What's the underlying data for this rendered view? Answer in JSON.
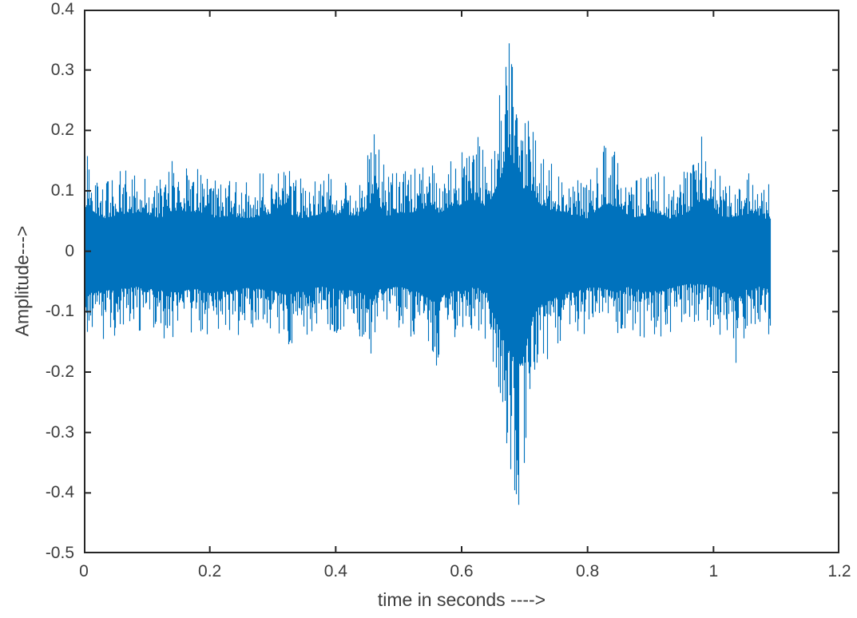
{
  "figure": {
    "background": "#ffffff",
    "axis_color": "#262626",
    "label_color": "#3d3d3d"
  },
  "chart_data": {
    "type": "line",
    "subtype": "audio-waveform",
    "title": "",
    "xlabel": "time in seconds ---->",
    "ylabel": "Amplitude--->",
    "xlim": [
      0,
      1.2
    ],
    "ylim": [
      -0.5,
      0.4
    ],
    "xticks": [
      0,
      0.2,
      0.4,
      0.6,
      0.8,
      1,
      1.2
    ],
    "xtick_labels": [
      "0",
      "0.2",
      "0.4",
      "0.6",
      "0.8",
      "1",
      "1.2"
    ],
    "yticks": [
      0.4,
      0.3,
      0.2,
      0.1,
      0,
      -0.1,
      -0.2,
      -0.3,
      -0.4,
      -0.5
    ],
    "ytick_labels": [
      "0.4",
      "0.3",
      "0.2",
      "0.1",
      "0",
      "-0.1",
      "-0.2",
      "-0.3",
      "-0.4",
      "-0.5"
    ],
    "grid": false,
    "legend": null,
    "box": true,
    "tick_direction": "in",
    "line_color": "#0072BD",
    "signal": {
      "description": "dense noisy speech/audio waveform centered on 0",
      "t_start": 0,
      "t_end": 1.09,
      "peak_positive": {
        "t": 0.675,
        "value": 0.345
      },
      "peak_negative": {
        "t": 0.69,
        "value": -0.42
      },
      "secondary_burst": {
        "t": 0.98,
        "value": 0.19
      },
      "envelope_top": [
        [
          0,
          0.16
        ],
        [
          0.01,
          0.155
        ],
        [
          0.03,
          0.12
        ],
        [
          0.07,
          0.14
        ],
        [
          0.09,
          0.14
        ],
        [
          0.12,
          0.12
        ],
        [
          0.14,
          0.15
        ],
        [
          0.175,
          0.145
        ],
        [
          0.2,
          0.12
        ],
        [
          0.23,
          0.13
        ],
        [
          0.26,
          0.12
        ],
        [
          0.3,
          0.14
        ],
        [
          0.32,
          0.14
        ],
        [
          0.35,
          0.12
        ],
        [
          0.38,
          0.14
        ],
        [
          0.41,
          0.13
        ],
        [
          0.44,
          0.13
        ],
        [
          0.46,
          0.195
        ],
        [
          0.48,
          0.13
        ],
        [
          0.51,
          0.14
        ],
        [
          0.54,
          0.15
        ],
        [
          0.57,
          0.14
        ],
        [
          0.6,
          0.17
        ],
        [
          0.625,
          0.19
        ],
        [
          0.64,
          0.15
        ],
        [
          0.655,
          0.24
        ],
        [
          0.668,
          0.31
        ],
        [
          0.675,
          0.345
        ],
        [
          0.682,
          0.3
        ],
        [
          0.69,
          0.27
        ],
        [
          0.7,
          0.22
        ],
        [
          0.712,
          0.21
        ],
        [
          0.725,
          0.17
        ],
        [
          0.74,
          0.15
        ],
        [
          0.76,
          0.14
        ],
        [
          0.78,
          0.13
        ],
        [
          0.8,
          0.12
        ],
        [
          0.826,
          0.175
        ],
        [
          0.85,
          0.16
        ],
        [
          0.87,
          0.12
        ],
        [
          0.89,
          0.13
        ],
        [
          0.91,
          0.14
        ],
        [
          0.93,
          0.12
        ],
        [
          0.95,
          0.13
        ],
        [
          0.965,
          0.15
        ],
        [
          0.98,
          0.19
        ],
        [
          0.992,
          0.185
        ],
        [
          1.005,
          0.14
        ],
        [
          1.02,
          0.12
        ],
        [
          1.04,
          0.13
        ],
        [
          1.06,
          0.14
        ],
        [
          1.075,
          0.12
        ],
        [
          1.09,
          0.12
        ]
      ],
      "envelope_bottom": [
        [
          0,
          0.16
        ],
        [
          0.02,
          0.148
        ],
        [
          0.05,
          0.14
        ],
        [
          0.08,
          0.13
        ],
        [
          0.11,
          0.14
        ],
        [
          0.14,
          0.15
        ],
        [
          0.17,
          0.14
        ],
        [
          0.2,
          0.14
        ],
        [
          0.23,
          0.15
        ],
        [
          0.26,
          0.13
        ],
        [
          0.29,
          0.14
        ],
        [
          0.32,
          0.16
        ],
        [
          0.35,
          0.14
        ],
        [
          0.38,
          0.13
        ],
        [
          0.41,
          0.14
        ],
        [
          0.44,
          0.15
        ],
        [
          0.455,
          0.17
        ],
        [
          0.47,
          0.14
        ],
        [
          0.5,
          0.13
        ],
        [
          0.53,
          0.15
        ],
        [
          0.56,
          0.19
        ],
        [
          0.58,
          0.14
        ],
        [
          0.6,
          0.15
        ],
        [
          0.62,
          0.13
        ],
        [
          0.64,
          0.15
        ],
        [
          0.655,
          0.25
        ],
        [
          0.67,
          0.35
        ],
        [
          0.685,
          0.4
        ],
        [
          0.69,
          0.42
        ],
        [
          0.7,
          0.37
        ],
        [
          0.705,
          0.3
        ],
        [
          0.715,
          0.22
        ],
        [
          0.73,
          0.19
        ],
        [
          0.75,
          0.17
        ],
        [
          0.77,
          0.15
        ],
        [
          0.79,
          0.14
        ],
        [
          0.81,
          0.13
        ],
        [
          0.83,
          0.14
        ],
        [
          0.844,
          0.15
        ],
        [
          0.86,
          0.13
        ],
        [
          0.88,
          0.14
        ],
        [
          0.9,
          0.15
        ],
        [
          0.92,
          0.14
        ],
        [
          0.94,
          0.13
        ],
        [
          0.96,
          0.12
        ],
        [
          0.98,
          0.12
        ],
        [
          1,
          0.13
        ],
        [
          1.02,
          0.15
        ],
        [
          1.035,
          0.185
        ],
        [
          1.05,
          0.14
        ],
        [
          1.07,
          0.13
        ],
        [
          1.09,
          0.14
        ]
      ],
      "forced_peaks": [
        {
          "t": 0.005,
          "side": "top"
        },
        {
          "t": 0.14,
          "side": "top"
        },
        {
          "t": 0.46,
          "side": "top"
        },
        {
          "t": 0.625,
          "side": "top"
        },
        {
          "t": 0.675,
          "side": "top"
        },
        {
          "t": 0.705,
          "side": "top"
        },
        {
          "t": 0.826,
          "side": "top"
        },
        {
          "t": 0.98,
          "side": "top"
        },
        {
          "t": 0.03,
          "side": "bottom"
        },
        {
          "t": 0.455,
          "side": "bottom"
        },
        {
          "t": 0.56,
          "side": "bottom"
        },
        {
          "t": 0.69,
          "side": "bottom"
        },
        {
          "t": 1.035,
          "side": "bottom"
        }
      ]
    }
  }
}
